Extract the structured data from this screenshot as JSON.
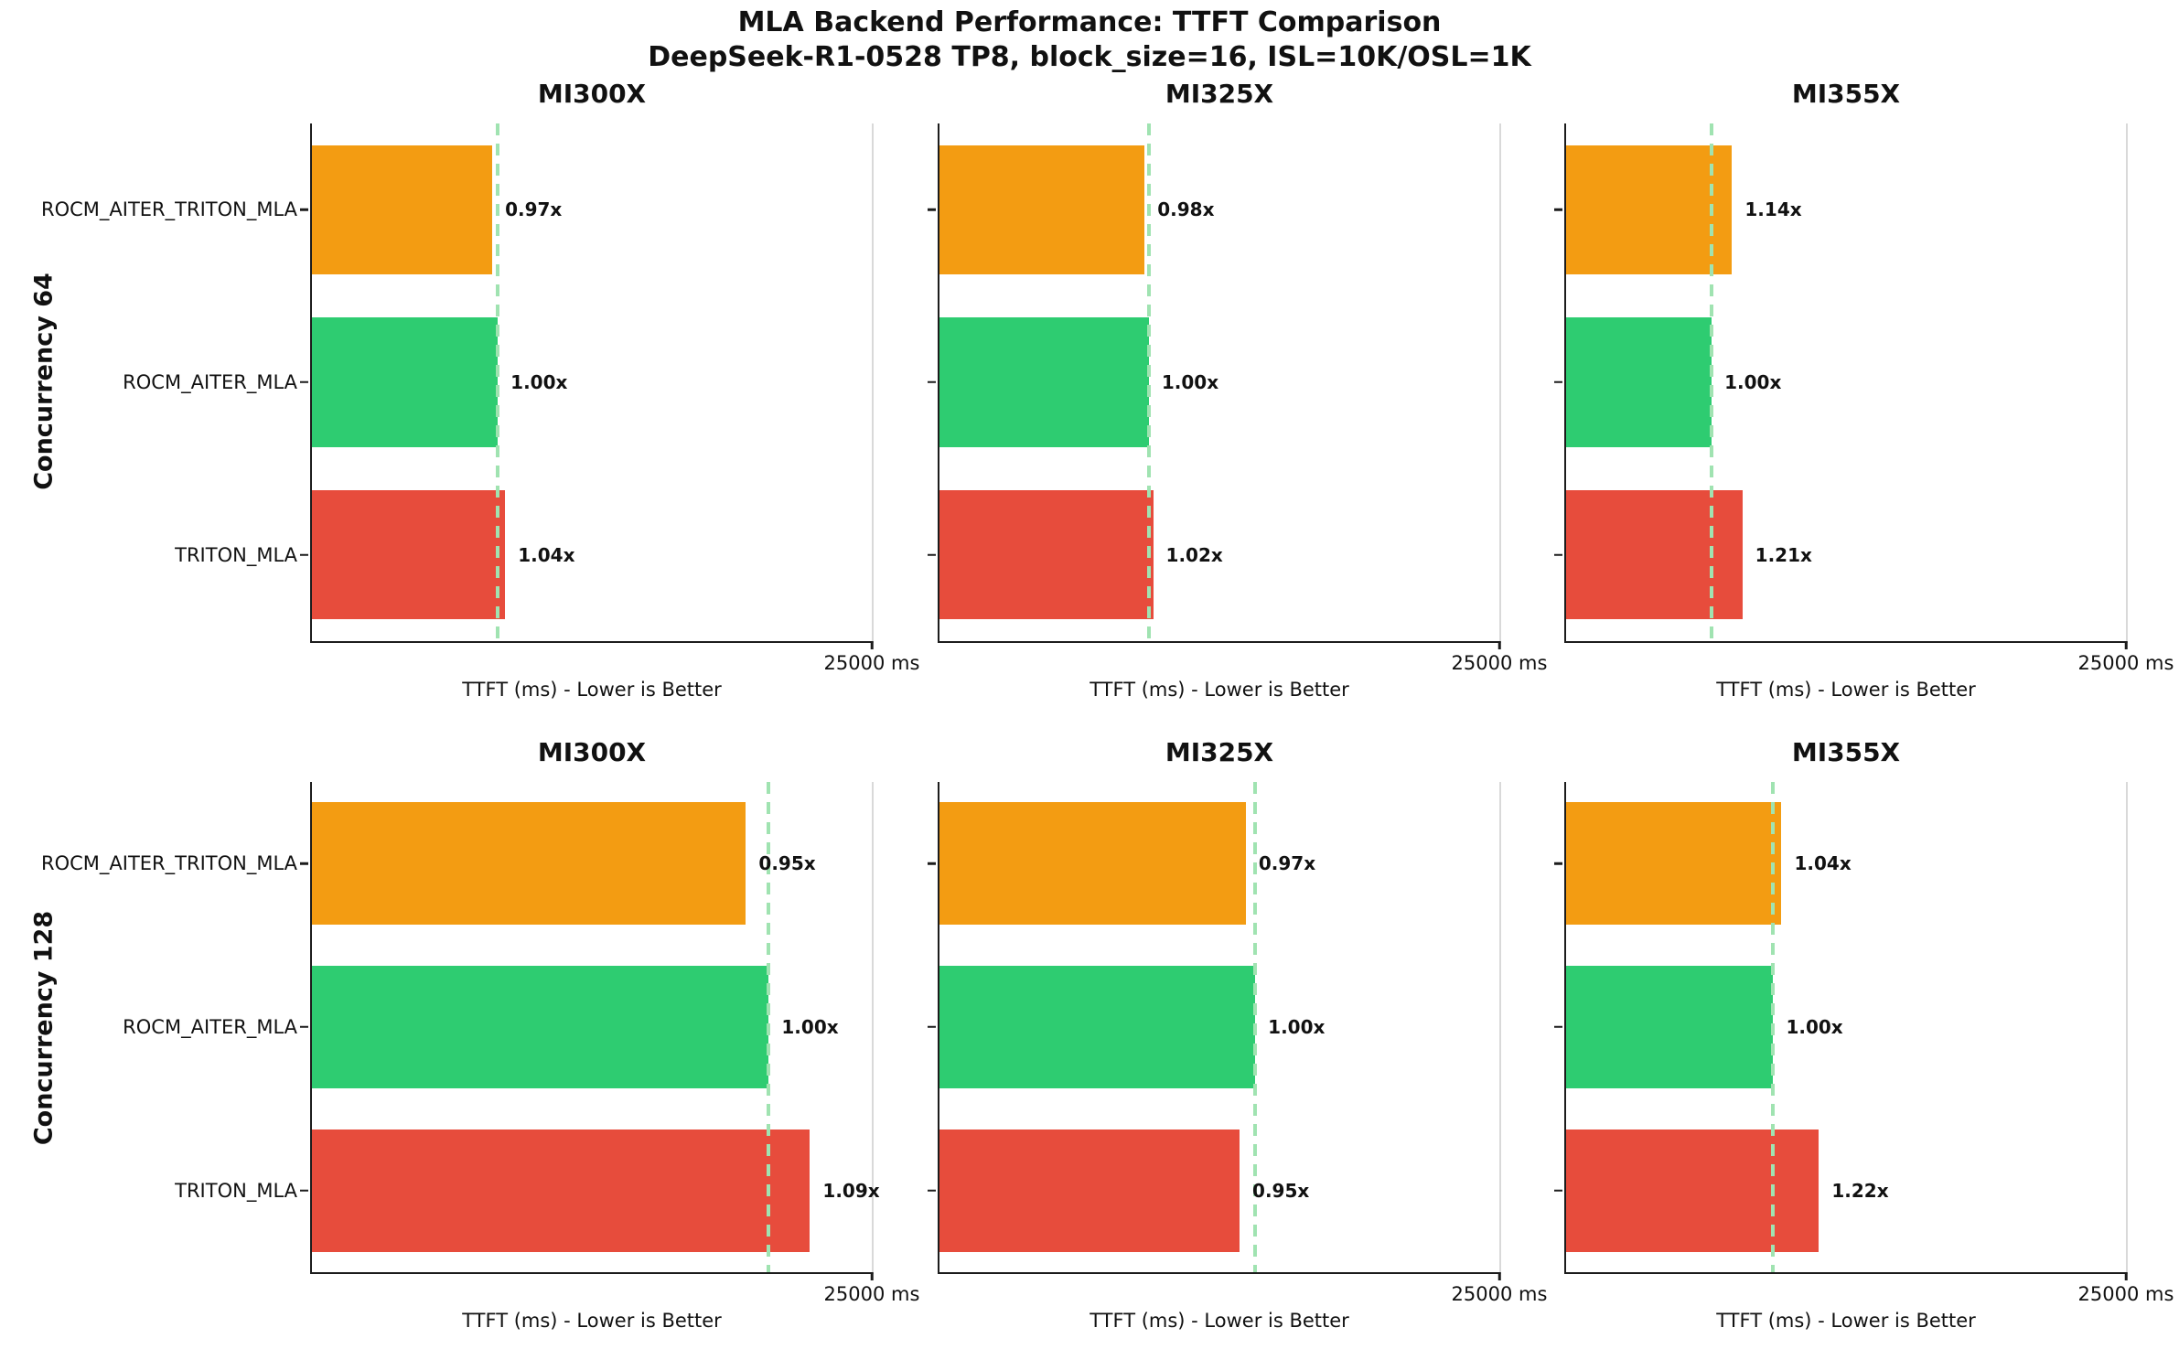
{
  "figure": {
    "title_line1": "MLA Backend Performance: TTFT Comparison",
    "title_line2": "DeepSeek-R1-0528 TP8, block_size=16, ISL=10K/OSL=1K",
    "colors": {
      "bar_orange": "#f39c12",
      "bar_green": "#2ecc71",
      "bar_red": "#e74c3c",
      "ref_line": "#a0e3b1",
      "spine": "#1c1c1c",
      "spine_right": "#d9d9d9"
    }
  },
  "rows": [
    {
      "label": "Concurrency 64"
    },
    {
      "label": "Concurrency 128"
    }
  ],
  "backends": [
    "ROCM_AITER_TRITON_MLA",
    "ROCM_AITER_MLA",
    "TRITON_MLA"
  ],
  "backend_colors": {
    "ROCM_AITER_TRITON_MLA": "#f39c12",
    "ROCM_AITER_MLA": "#2ecc71",
    "TRITON_MLA": "#e74c3c"
  },
  "axis": {
    "max": 25000,
    "max_label": "25000 ms",
    "xlabel": "TTFT (ms) - Lower is Better"
  },
  "chart_data": [
    {
      "type": "bar",
      "orientation": "horizontal",
      "row": "Concurrency 64",
      "gpu": "MI300X",
      "categories": [
        "ROCM_AITER_TRITON_MLA",
        "ROCM_AITER_MLA",
        "TRITON_MLA"
      ],
      "values_ms": [
        8050,
        8300,
        8630
      ],
      "ratio_labels": [
        "0.97x",
        "1.00x",
        "1.04x"
      ],
      "reference_ms": 8300,
      "xlim": [
        0,
        25000
      ]
    },
    {
      "type": "bar",
      "orientation": "horizontal",
      "row": "Concurrency 64",
      "gpu": "MI325X",
      "categories": [
        "ROCM_AITER_TRITON_MLA",
        "ROCM_AITER_MLA",
        "TRITON_MLA"
      ],
      "values_ms": [
        9160,
        9350,
        9540
      ],
      "ratio_labels": [
        "0.98x",
        "1.00x",
        "1.02x"
      ],
      "reference_ms": 9350,
      "xlim": [
        0,
        25000
      ]
    },
    {
      "type": "bar",
      "orientation": "horizontal",
      "row": "Concurrency 64",
      "gpu": "MI355X",
      "categories": [
        "ROCM_AITER_TRITON_MLA",
        "ROCM_AITER_MLA",
        "TRITON_MLA"
      ],
      "values_ms": [
        7410,
        6500,
        7870
      ],
      "ratio_labels": [
        "1.14x",
        "1.00x",
        "1.21x"
      ],
      "reference_ms": 6500,
      "xlim": [
        0,
        25000
      ]
    },
    {
      "type": "bar",
      "orientation": "horizontal",
      "row": "Concurrency 128",
      "gpu": "MI300X",
      "categories": [
        "ROCM_AITER_TRITON_MLA",
        "ROCM_AITER_MLA",
        "TRITON_MLA"
      ],
      "values_ms": [
        19380,
        20400,
        22240
      ],
      "ratio_labels": [
        "0.95x",
        "1.00x",
        "1.09x"
      ],
      "reference_ms": 20400,
      "xlim": [
        0,
        25000
      ]
    },
    {
      "type": "bar",
      "orientation": "horizontal",
      "row": "Concurrency 128",
      "gpu": "MI325X",
      "categories": [
        "ROCM_AITER_TRITON_MLA",
        "ROCM_AITER_MLA",
        "TRITON_MLA"
      ],
      "values_ms": [
        13680,
        14100,
        13400
      ],
      "ratio_labels": [
        "0.97x",
        "1.00x",
        "0.95x"
      ],
      "reference_ms": 14100,
      "xlim": [
        0,
        25000
      ]
    },
    {
      "type": "bar",
      "orientation": "horizontal",
      "row": "Concurrency 128",
      "gpu": "MI355X",
      "categories": [
        "ROCM_AITER_TRITON_MLA",
        "ROCM_AITER_MLA",
        "TRITON_MLA"
      ],
      "values_ms": [
        9620,
        9250,
        11290
      ],
      "ratio_labels": [
        "1.04x",
        "1.00x",
        "1.22x"
      ],
      "reference_ms": 9250,
      "xlim": [
        0,
        25000
      ]
    }
  ]
}
